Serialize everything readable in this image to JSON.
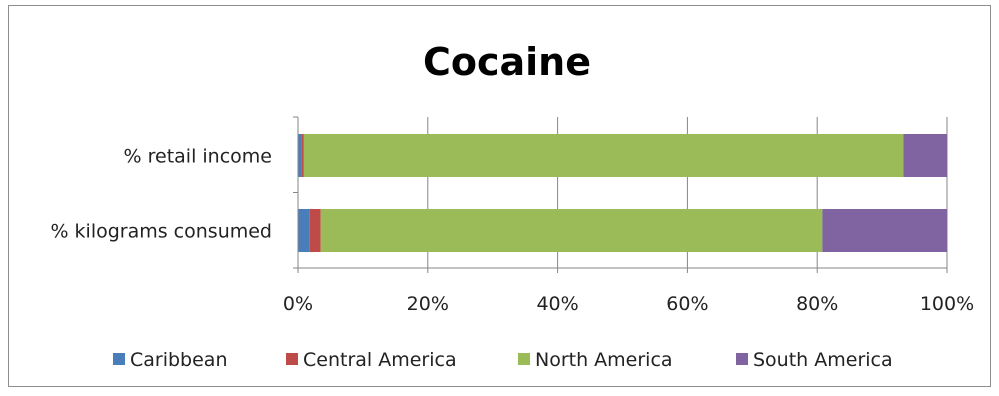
{
  "chart_data": {
    "type": "bar",
    "orientation": "horizontal",
    "stacked": "percent",
    "title": "Cocaine",
    "categories": [
      "% retail income",
      "% kilograms consumed"
    ],
    "series": [
      {
        "name": "Caribbean",
        "color": "#4a7ebb",
        "values": [
          0.5,
          1.8
        ]
      },
      {
        "name": "Central America",
        "color": "#be4b48",
        "values": [
          0.4,
          1.7
        ]
      },
      {
        "name": "North America",
        "color": "#9bbb59",
        "values": [
          92.4,
          77.3
        ]
      },
      {
        "name": "South America",
        "color": "#8064a2",
        "values": [
          6.7,
          19.2
        ]
      }
    ],
    "x_ticks": [
      "0%",
      "20%",
      "40%",
      "60%",
      "80%",
      "100%"
    ],
    "xlim": [
      0,
      100
    ],
    "grid": "vertical",
    "legend_position": "bottom"
  }
}
